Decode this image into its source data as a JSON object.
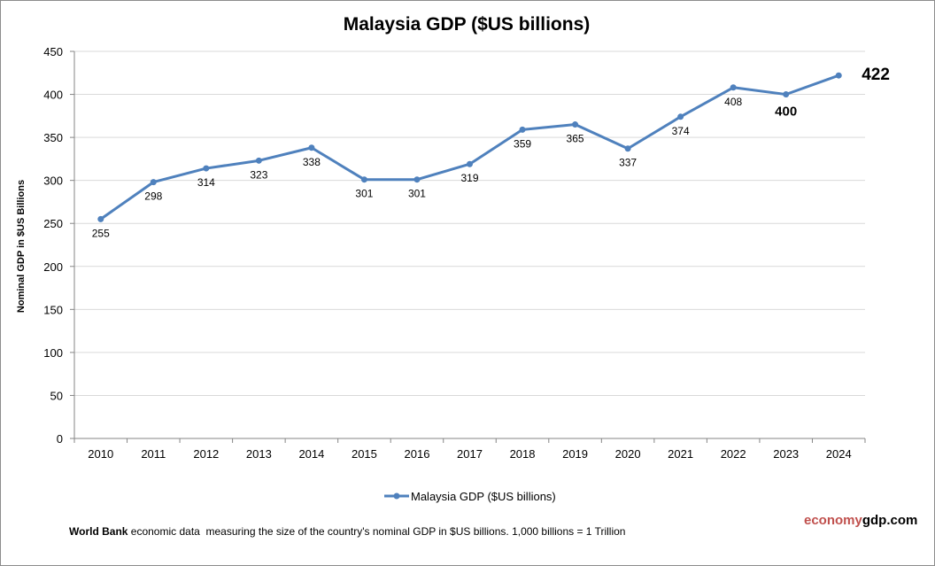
{
  "chart_data": {
    "type": "line",
    "title": "Malaysia GDP ($US billions)",
    "ylabel": "Nominal GDP in $US  Billions",
    "xlabel": "",
    "ylim": [
      0,
      450
    ],
    "yticks": [
      0,
      50,
      100,
      150,
      200,
      250,
      300,
      350,
      400,
      450
    ],
    "grid": true,
    "legend_position": "bottom",
    "categories": [
      "2010",
      "2011",
      "2012",
      "2013",
      "2014",
      "2015",
      "2016",
      "2017",
      "2018",
      "2019",
      "2020",
      "2021",
      "2022",
      "2023",
      "2024"
    ],
    "series": [
      {
        "name": "Malaysia GDP ($US billions)",
        "color": "#4f81bd",
        "values": [
          255,
          298,
          314,
          323,
          338,
          301,
          301,
          319,
          359,
          365,
          337,
          374,
          408,
          400,
          422
        ],
        "labels": [
          "255",
          "298",
          "314",
          "323",
          "338",
          "301",
          "301",
          "319",
          "359",
          "365",
          "337",
          "374",
          "408",
          "400",
          "422"
        ]
      }
    ]
  },
  "footer": {
    "source_bold": "World Bank",
    "text": " economic data  measuring the size of the country's nominal GDP in $US billions. 1,000 billions = 1 Trillion"
  },
  "brand": {
    "part1": "economy",
    "part2": "gdp.com"
  }
}
